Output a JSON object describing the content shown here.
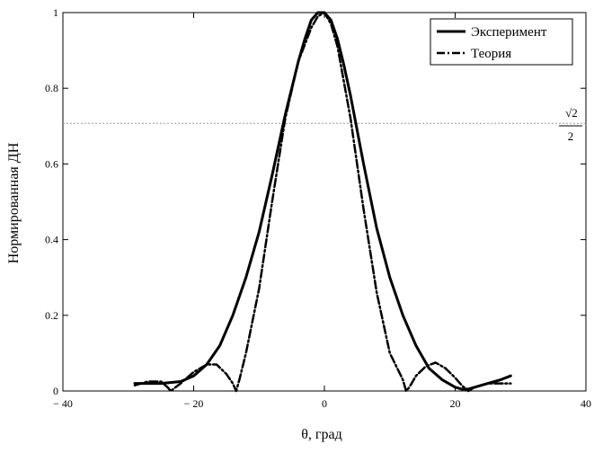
{
  "chart_data": {
    "type": "line",
    "title": "",
    "xlabel": "θ, град",
    "ylabel": "Нормированная ДН",
    "xlim": [
      -40,
      40
    ],
    "ylim": [
      0,
      1
    ],
    "xticks": [
      -40,
      -20,
      0,
      20,
      40
    ],
    "xtick_labels": [
      "− 40",
      "− 20",
      "0",
      "20",
      "40"
    ],
    "yticks": [
      0,
      0.2,
      0.4,
      0.6,
      0.8,
      1
    ],
    "ytick_labels": [
      "0",
      "0.2",
      "0.4",
      "0.6",
      "0.8",
      "1"
    ],
    "grid": false,
    "legend_position": "top-right",
    "reference_line": {
      "y": 0.7071,
      "style": "dotted",
      "color": "#9a9a9a",
      "label_parts": [
        "√2",
        "2"
      ]
    },
    "series": [
      {
        "name": "Эксперимент",
        "style": "solid",
        "color": "#000000",
        "x": [
          -29,
          -25,
          -22,
          -20,
          -18,
          -16,
          -14,
          -12,
          -10,
          -8,
          -6,
          -4,
          -3,
          -2,
          -1,
          0,
          1,
          2,
          3,
          4,
          6,
          8,
          10,
          12,
          14,
          16,
          18,
          20,
          21,
          22,
          23,
          25,
          27,
          28.5
        ],
        "y": [
          0.02,
          0.02,
          0.025,
          0.04,
          0.07,
          0.12,
          0.2,
          0.3,
          0.42,
          0.57,
          0.73,
          0.87,
          0.93,
          0.98,
          1.0,
          1.0,
          0.98,
          0.93,
          0.86,
          0.78,
          0.6,
          0.43,
          0.3,
          0.2,
          0.12,
          0.06,
          0.03,
          0.01,
          0.005,
          0.005,
          0.01,
          0.02,
          0.03,
          0.04
        ]
      },
      {
        "name": "Теория",
        "style": "dashdot",
        "color": "#000000",
        "x": [
          -29,
          -27,
          -25,
          -24,
          -23.5,
          -22,
          -20,
          -18,
          -16.5,
          -15,
          -14,
          -13.5,
          -13,
          -12,
          -10,
          -8,
          -6,
          -4,
          -2,
          -1,
          0,
          1,
          2,
          4,
          6,
          8,
          10,
          12,
          12.5,
          13,
          14,
          15.5,
          17,
          18.5,
          20,
          21,
          22,
          23,
          25,
          27,
          28.5
        ],
        "y": [
          0.015,
          0.025,
          0.025,
          0.01,
          0.0,
          0.02,
          0.05,
          0.07,
          0.07,
          0.045,
          0.02,
          0.0,
          0.03,
          0.1,
          0.27,
          0.5,
          0.72,
          0.87,
          0.96,
          0.99,
          1.0,
          0.97,
          0.91,
          0.72,
          0.48,
          0.26,
          0.1,
          0.03,
          0.0,
          0.01,
          0.04,
          0.065,
          0.075,
          0.06,
          0.035,
          0.015,
          0.0,
          0.01,
          0.02,
          0.02,
          0.02
        ]
      }
    ]
  }
}
